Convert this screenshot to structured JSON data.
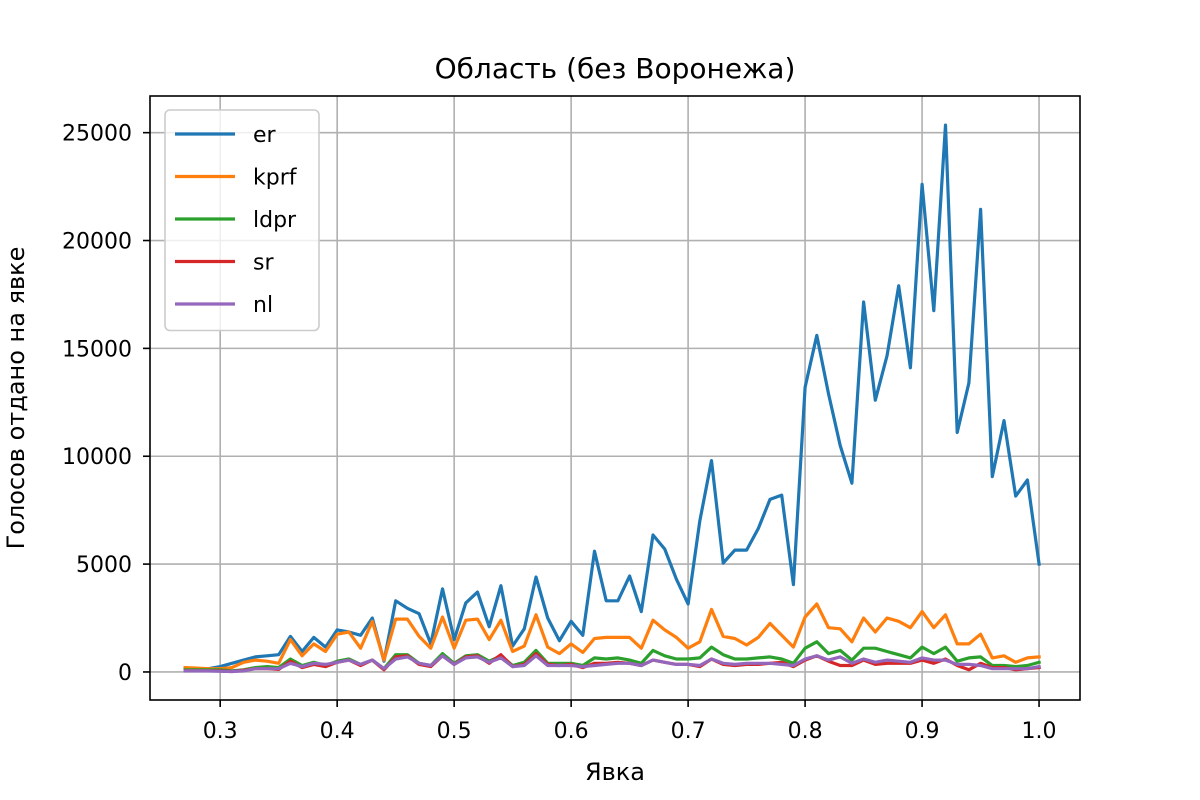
{
  "chart_data": {
    "type": "line",
    "title": "Область (без Воронежа)",
    "xlabel": "Явка",
    "ylabel": "Голосов отдано на явке",
    "xlim": [
      0.24,
      1.035
    ],
    "ylim": [
      -1300,
      26700
    ],
    "xticks": [
      0.3,
      0.4,
      0.5,
      0.6,
      0.7,
      0.8,
      0.9,
      1.0
    ],
    "xtick_labels": [
      "0.3",
      "0.4",
      "0.5",
      "0.6",
      "0.7",
      "0.8",
      "0.9",
      "1.0"
    ],
    "yticks": [
      0,
      5000,
      10000,
      15000,
      20000,
      25000
    ],
    "ytick_labels": [
      "0",
      "5000",
      "10000",
      "15000",
      "20000",
      "25000"
    ],
    "grid": true,
    "legend_position": "top-left",
    "x": [
      0.27,
      0.28,
      0.29,
      0.3,
      0.31,
      0.32,
      0.33,
      0.34,
      0.35,
      0.36,
      0.37,
      0.38,
      0.39,
      0.4,
      0.41,
      0.42,
      0.43,
      0.44,
      0.45,
      0.46,
      0.47,
      0.48,
      0.49,
      0.5,
      0.51,
      0.52,
      0.53,
      0.54,
      0.55,
      0.56,
      0.57,
      0.58,
      0.59,
      0.6,
      0.61,
      0.62,
      0.63,
      0.64,
      0.65,
      0.66,
      0.67,
      0.68,
      0.69,
      0.7,
      0.71,
      0.72,
      0.73,
      0.74,
      0.75,
      0.76,
      0.77,
      0.78,
      0.79,
      0.8,
      0.81,
      0.82,
      0.83,
      0.84,
      0.85,
      0.86,
      0.87,
      0.88,
      0.89,
      0.9,
      0.91,
      0.92,
      0.93,
      0.94,
      0.95,
      0.96,
      0.97,
      0.98,
      0.99,
      1.0
    ],
    "series": [
      {
        "name": "er",
        "color": "#1f77b4",
        "values": [
          100,
          120,
          150,
          250,
          400,
          550,
          700,
          750,
          800,
          1650,
          950,
          1600,
          1150,
          1950,
          1850,
          1700,
          2500,
          500,
          3300,
          2950,
          2700,
          1300,
          3850,
          1500,
          3200,
          3700,
          2100,
          4000,
          1200,
          2000,
          4400,
          2500,
          1450,
          2350,
          1700,
          5600,
          3300,
          3300,
          4450,
          2800,
          6350,
          5700,
          4300,
          3150,
          7000,
          9800,
          5050,
          5650,
          5650,
          6650,
          8000,
          8200,
          4050,
          13200,
          15600,
          12900,
          10500,
          8750,
          17150,
          12600,
          14650,
          17900,
          14100,
          22600,
          16750,
          25350,
          11100,
          13400,
          21450,
          9050,
          11650,
          8150,
          8900,
          5000
        ]
      },
      {
        "name": "kprf",
        "color": "#ff7f0e",
        "values": [
          200,
          180,
          150,
          150,
          200,
          450,
          550,
          500,
          400,
          1500,
          750,
          1300,
          950,
          1750,
          1850,
          1100,
          2350,
          550,
          2450,
          2450,
          1650,
          1100,
          2550,
          1100,
          2400,
          2450,
          1500,
          2400,
          950,
          1200,
          2650,
          1150,
          850,
          1300,
          900,
          1550,
          1600,
          1600,
          1600,
          1100,
          2400,
          1950,
          1600,
          1100,
          1400,
          2900,
          1650,
          1550,
          1250,
          1600,
          2250,
          1700,
          1150,
          2550,
          3150,
          2050,
          2000,
          1400,
          2500,
          1850,
          2500,
          2350,
          2050,
          2800,
          2050,
          2650,
          1300,
          1300,
          1750,
          650,
          750,
          450,
          650,
          700
        ]
      },
      {
        "name": "ldpr",
        "color": "#2ca02c",
        "values": [
          100,
          100,
          100,
          100,
          50,
          100,
          200,
          250,
          200,
          600,
          300,
          450,
          300,
          500,
          600,
          350,
          550,
          150,
          800,
          800,
          400,
          300,
          850,
          400,
          750,
          800,
          500,
          750,
          300,
          450,
          1000,
          400,
          400,
          400,
          300,
          650,
          600,
          650,
          550,
          400,
          1000,
          750,
          600,
          600,
          650,
          1150,
          800,
          600,
          600,
          650,
          700,
          600,
          400,
          1100,
          1400,
          850,
          1000,
          550,
          1100,
          1100,
          950,
          800,
          650,
          1150,
          850,
          1150,
          500,
          650,
          700,
          300,
          300,
          250,
          300,
          450
        ]
      },
      {
        "name": "sr",
        "color": "#d62728",
        "values": [
          50,
          50,
          50,
          50,
          20,
          80,
          150,
          150,
          120,
          500,
          200,
          350,
          250,
          450,
          550,
          300,
          550,
          100,
          700,
          750,
          350,
          250,
          750,
          350,
          700,
          750,
          400,
          800,
          250,
          350,
          850,
          350,
          300,
          350,
          200,
          400,
          400,
          450,
          400,
          300,
          550,
          450,
          350,
          350,
          250,
          600,
          350,
          300,
          350,
          350,
          400,
          450,
          250,
          550,
          750,
          500,
          300,
          300,
          550,
          350,
          400,
          400,
          400,
          550,
          400,
          600,
          300,
          100,
          400,
          200,
          200,
          100,
          150,
          200
        ]
      },
      {
        "name": "nl",
        "color": "#9467bd",
        "values": [
          50,
          50,
          50,
          30,
          20,
          50,
          150,
          150,
          150,
          400,
          250,
          400,
          350,
          450,
          550,
          350,
          550,
          150,
          600,
          700,
          400,
          300,
          750,
          350,
          650,
          700,
          450,
          650,
          250,
          300,
          750,
          300,
          300,
          300,
          250,
          300,
          350,
          400,
          400,
          300,
          550,
          450,
          350,
          350,
          300,
          600,
          400,
          350,
          400,
          400,
          400,
          350,
          300,
          600,
          750,
          550,
          700,
          400,
          600,
          450,
          550,
          500,
          450,
          650,
          550,
          550,
          350,
          350,
          300,
          150,
          150,
          150,
          150,
          250
        ]
      }
    ]
  }
}
